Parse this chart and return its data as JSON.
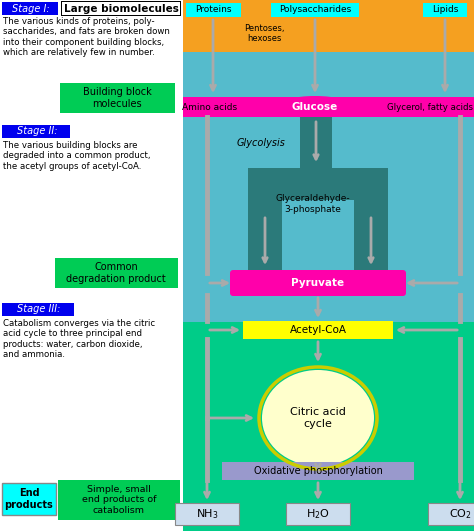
{
  "stage1_label": "Stage I:",
  "stage1_box": "Large biomolecules",
  "stage1_text": "The various kinds of proteins, poly-\nsaccharides, and fats are broken down\ninto their component building blocks,\nwhich are relatively few in number.",
  "building_block": "Building block\nmolecules",
  "stage2_label": "Stage II:",
  "stage2_text": "The various building blocks are\ndegraded into a common product,\nthe acetyl groups of acetyl-CoA.",
  "common_deg": "Common\ndegradation product",
  "stage3_label": "Stage III:",
  "stage3_text": "Catabolism converges via the citric\nacid cycle to three principal end\nproducts: water, carbon dioxide,\nand ammonia.",
  "end_products": "End\nproducts",
  "simple": "Simple, small\nend products of\ncatabolism",
  "proteins": "Proteins",
  "polysaccharides": "Polysaccharides",
  "lipids": "Lipids",
  "pentoses": "Pentoses,\nhexoses",
  "amino_acids": "Amino acids",
  "glucose": "Glucose",
  "glycerol": "Glycerol, fatty acids",
  "glycolysis": "Glycolysis",
  "glyceraldehyde": "Glyceraldehyde-\n3-phosphate",
  "pyruvate": "Pyruvate",
  "acetylcoa": "Acetyl-CoA",
  "citric": "Citric acid\ncycle",
  "oxphos": "Oxidative phosphorylation",
  "nh3": "NH$_3$",
  "h2o": "H$_2$O",
  "co2": "CO$_2$",
  "col_orange": "#f5a020",
  "col_teal": "#2b7a7a",
  "col_magenta": "#ff00aa",
  "col_yellow": "#ffff00",
  "col_yellow_light": "#ffffcc",
  "col_blue_bg1": "#55bbcc",
  "col_blue_bg2": "#44aacc",
  "col_green_bg": "#00cc88",
  "col_cyan": "#00ffff",
  "col_green_box": "#00cc55",
  "col_gray": "#aaaaaa",
  "col_purple": "#9999cc",
  "col_end_box": "#ccddee",
  "col_blue_lbl": "#0000ee",
  "divx": 183
}
